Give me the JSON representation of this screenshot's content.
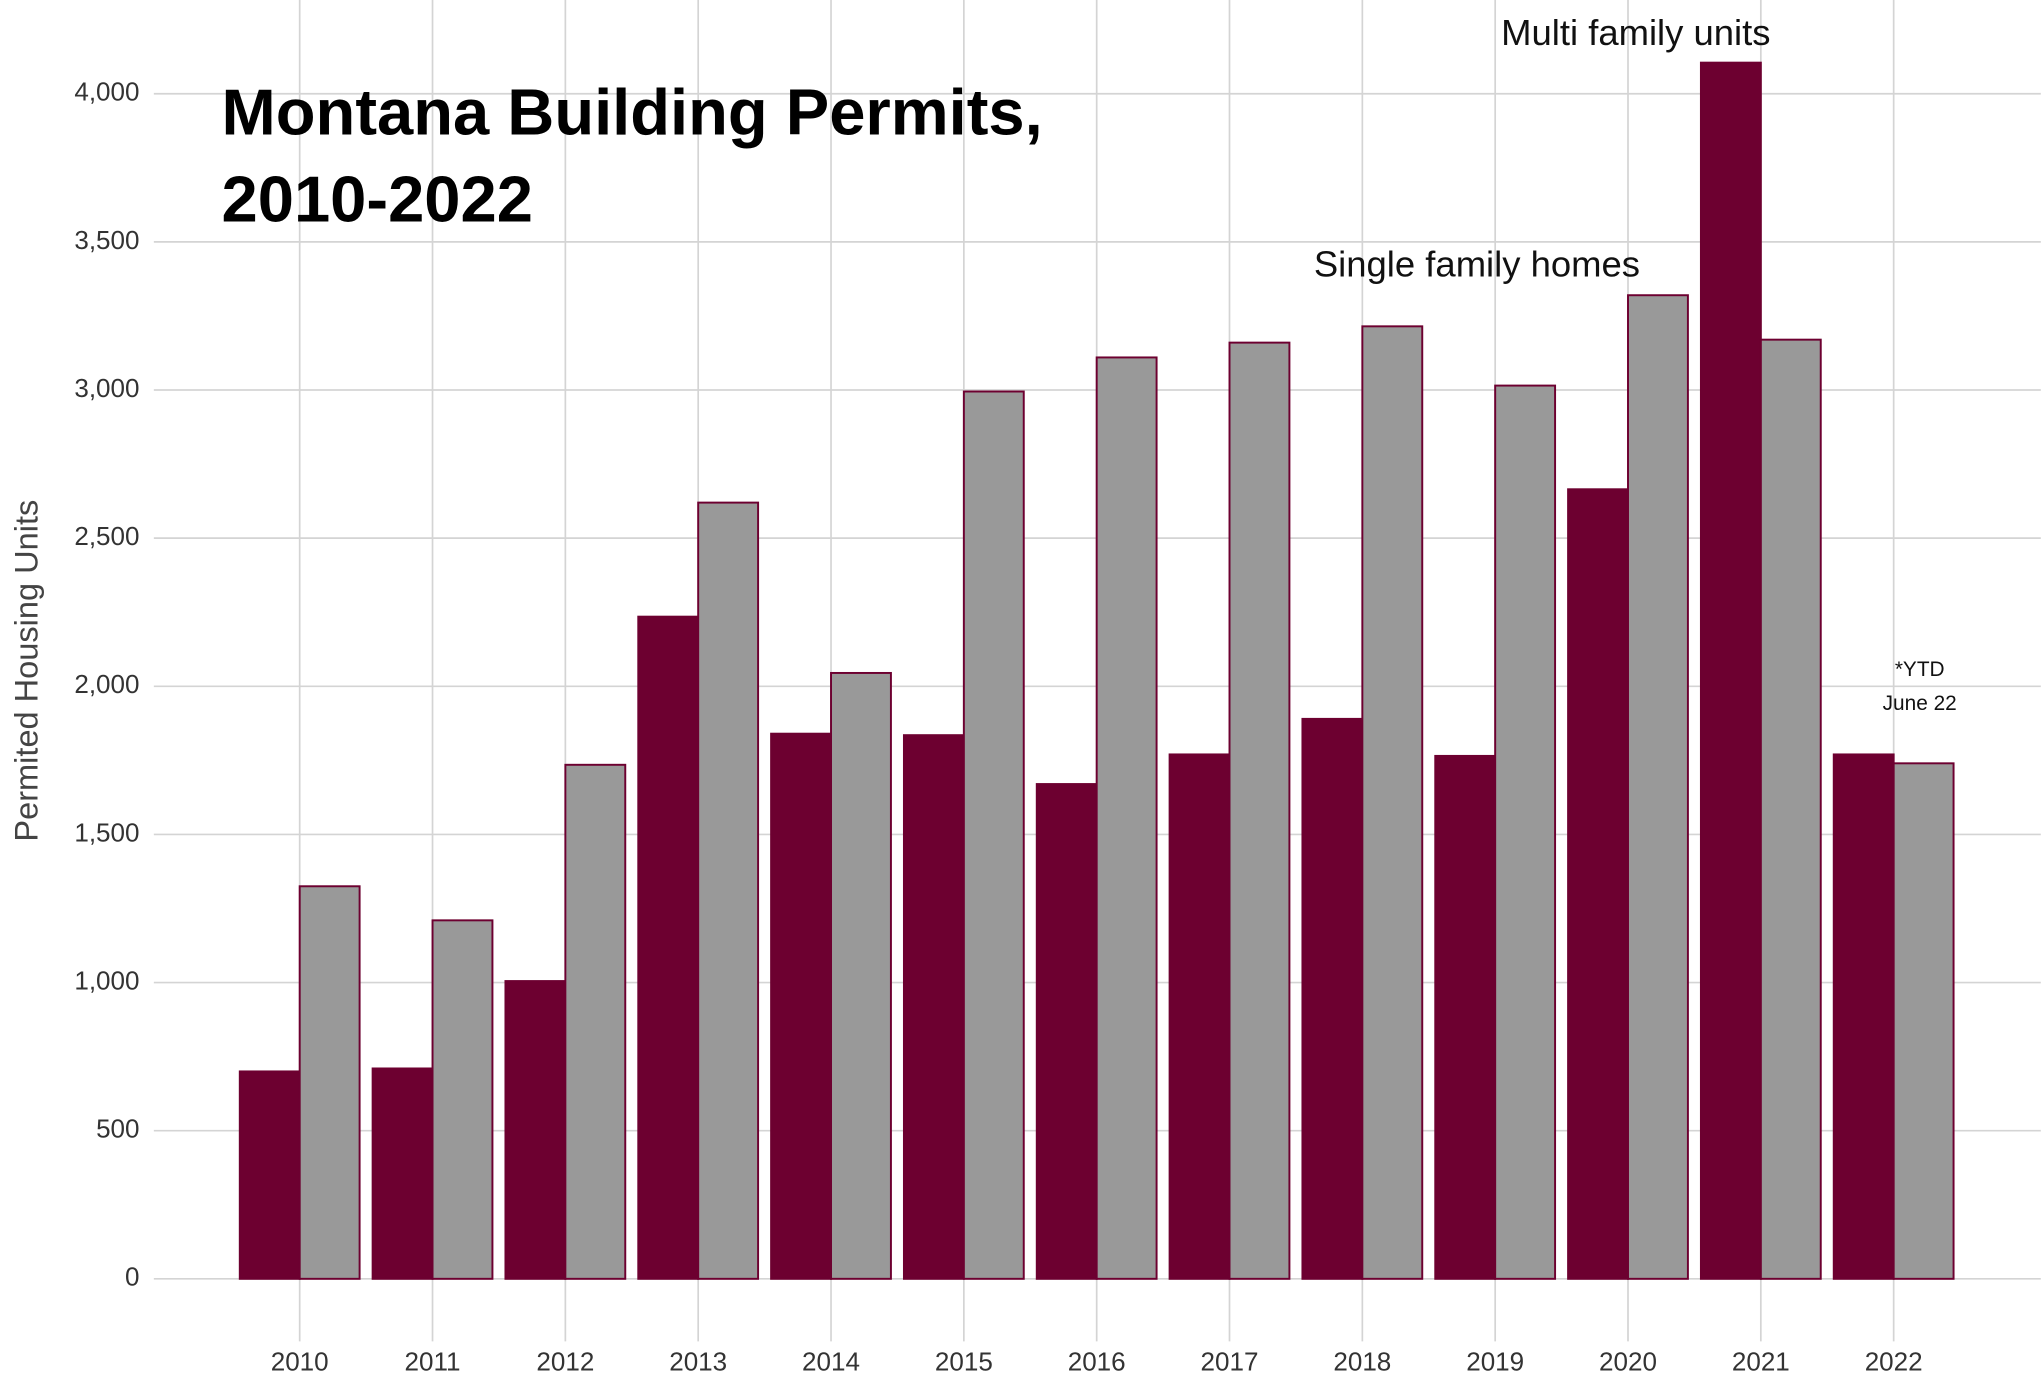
{
  "chart_data": {
    "type": "bar",
    "title": [
      "Montana Building Permits,",
      "2010-2022"
    ],
    "y_label": "Permited Housing Units",
    "categories": [
      "2010",
      "2011",
      "2012",
      "2013",
      "2014",
      "2015",
      "2016",
      "2017",
      "2018",
      "2019",
      "2020",
      "2021",
      "2022"
    ],
    "series": [
      {
        "name": "Multi family units",
        "color": "#6d0030",
        "values": [
          700,
          710,
          1005,
          2235,
          1840,
          1835,
          1670,
          1770,
          1890,
          1765,
          2665,
          4105,
          1770
        ]
      },
      {
        "name": "Single family homes",
        "color": "#999999",
        "values": [
          1325,
          1210,
          1735,
          2620,
          2045,
          2995,
          3110,
          3160,
          3215,
          3015,
          3320,
          3170,
          1740
        ]
      }
    ],
    "annotation": [
      "*YTD",
      "June 22"
    ],
    "outline_color": "#6d0030",
    "ylim": [
      0,
      4300
    ],
    "yticks": [
      0,
      500,
      {
        "value": 1000,
        "label": "1,000"
      },
      {
        "value": 1500,
        "label": "1,500"
      },
      {
        "value": 2000,
        "label": "2,000"
      },
      {
        "value": 2500,
        "label": "2,500"
      },
      {
        "value": 3000,
        "label": "3,000"
      },
      {
        "value": 3500,
        "label": "3,500"
      },
      {
        "value": 4000,
        "label": "4,000"
      }
    ],
    "grid": true
  }
}
